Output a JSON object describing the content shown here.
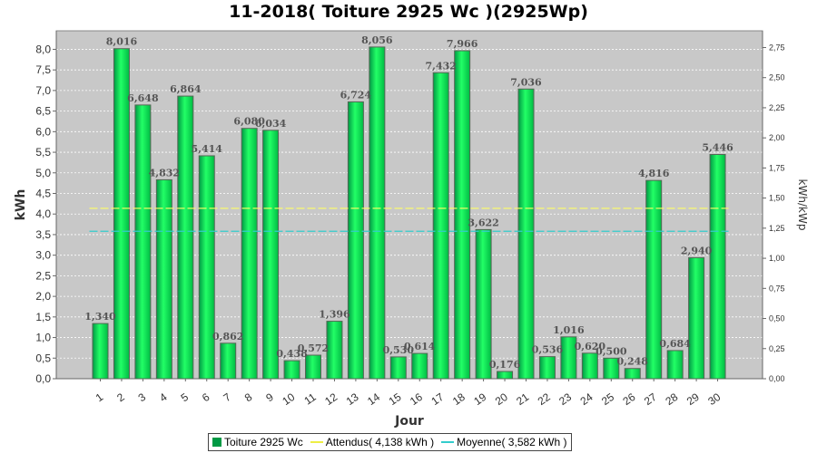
{
  "chart_data": {
    "type": "bar",
    "title": "11-2018( Toiture 2925 Wc )(2925Wp)",
    "xlabel": "Jour",
    "ylabel": "kWh",
    "ylabel_right": "kWh/kWp",
    "ylim": [
      0,
      8.45
    ],
    "ylim_right": [
      0,
      2.889
    ],
    "yticks": [
      "0,0",
      "0,5",
      "1,0",
      "1,5",
      "2,0",
      "2,5",
      "3,0",
      "3,5",
      "4,0",
      "4,5",
      "5,0",
      "5,5",
      "6,0",
      "6,5",
      "7,0",
      "7,5",
      "8,0"
    ],
    "yticks_right": [
      "0,00",
      "0,25",
      "0,50",
      "0,75",
      "1,00",
      "1,25",
      "1,50",
      "1,75",
      "2,00",
      "2,25",
      "2,50",
      "2,75"
    ],
    "categories": [
      "1",
      "2",
      "3",
      "4",
      "5",
      "6",
      "7",
      "8",
      "9",
      "10",
      "11",
      "12",
      "13",
      "14",
      "15",
      "16",
      "17",
      "18",
      "19",
      "20",
      "21",
      "22",
      "23",
      "24",
      "25",
      "26",
      "27",
      "28",
      "29",
      "30"
    ],
    "series": [
      {
        "name": "Toiture 2925 Wc",
        "values": [
          1.34,
          8.016,
          6.648,
          4.832,
          6.864,
          5.414,
          0.862,
          6.08,
          6.034,
          0.438,
          0.572,
          1.396,
          6.724,
          8.056,
          0.53,
          0.614,
          7.432,
          7.966,
          3.622,
          0.176,
          7.036,
          0.536,
          1.016,
          0.62,
          0.5,
          0.248,
          4.816,
          0.684,
          2.94,
          5.446
        ],
        "labels": [
          "1,340",
          "8,016",
          "6,648",
          "4,832",
          "6,864",
          "5,414",
          "0,862",
          "6,080",
          "6,034",
          "0,438",
          "0,572",
          "1,396",
          "6,724",
          "8,056",
          "0,530",
          "0,614",
          "7,432",
          "7,966",
          "3,622",
          "0,176",
          "7,036",
          "0,536",
          "1,016",
          "0,620",
          "0,500",
          "0,248",
          "4,816",
          "0,684",
          "2,940",
          "5,446"
        ]
      }
    ],
    "reference_lines": [
      {
        "name": "Attendus( 4,138 kWh )",
        "value": 4.138,
        "color": "#ffff66"
      },
      {
        "name": "Moyenne( 3,582 kWh )",
        "value": 3.582,
        "color": "#33cccc"
      }
    ],
    "colors": {
      "bar": "#00dd55",
      "bar_edge": "#556655",
      "plot_bg": "#c8c8c8",
      "grid": "#ffffff"
    },
    "grid": true,
    "legend_position": "bottom"
  }
}
